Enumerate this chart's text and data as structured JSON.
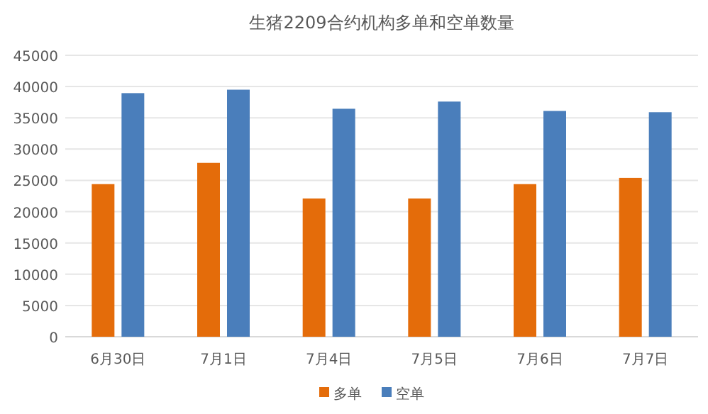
{
  "chart_data": {
    "type": "bar",
    "title": "生猪2209合约机构多单和空单数量",
    "categories": [
      "6月30日",
      "7月1日",
      "7月4日",
      "7月5日",
      "7月6日",
      "7月7日"
    ],
    "series": [
      {
        "name": "多单",
        "color": "#e46c0a",
        "values": [
          24400,
          27800,
          22100,
          22100,
          24400,
          25400
        ]
      },
      {
        "name": "空单",
        "color": "#4a7ebb",
        "values": [
          38950,
          39500,
          36450,
          37600,
          36100,
          35900
        ]
      }
    ],
    "ylim": [
      0,
      45000
    ],
    "yticks": [
      0,
      5000,
      10000,
      15000,
      20000,
      25000,
      30000,
      35000,
      40000,
      45000
    ],
    "grid": "y",
    "legend": "bottom"
  }
}
